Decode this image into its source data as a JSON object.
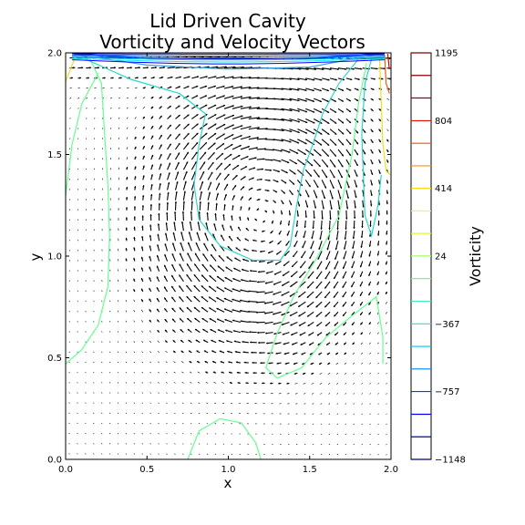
{
  "chart_data": {
    "type": "contour",
    "title": "Lid Driven Cavity\nVorticity and Velocity Vectors",
    "xlabel": "x",
    "ylabel": "y",
    "xlim": [
      0.0,
      2.0
    ],
    "ylim": [
      0.0,
      2.0
    ],
    "x_ticks": [
      "0.0",
      "0.5",
      "1.0",
      "1.5",
      "2.0"
    ],
    "y_ticks": [
      "0.0",
      "0.5",
      "1.0",
      "1.5",
      "2.0"
    ],
    "grid": false,
    "quiver": {
      "description": "velocity vectors on a regular grid; clockwise recirculation vortex centred near (1.2, 1.2) driven by the lid moving in +x at y = 2.0",
      "vortex_center": [
        1.2,
        1.2
      ],
      "color": "#000000"
    },
    "contours": [
      {
        "level": 24,
        "color": "#66ff90",
        "paths": [
          [
            [
              0.0,
              1.3
            ],
            [
              0.04,
              1.55
            ],
            [
              0.1,
              1.75
            ],
            [
              0.2,
              1.9
            ]
          ],
          [
            [
              0.0,
              0.47
            ],
            [
              0.1,
              0.54
            ],
            [
              0.2,
              0.66
            ],
            [
              0.26,
              0.85
            ],
            [
              0.27,
              1.1
            ],
            [
              0.26,
              1.35
            ],
            [
              0.24,
              1.6
            ],
            [
              0.22,
              1.85
            ],
            [
              0.15,
              1.97
            ]
          ],
          [
            [
              0.75,
              0.0
            ],
            [
              0.82,
              0.14
            ],
            [
              0.95,
              0.2
            ],
            [
              1.08,
              0.18
            ],
            [
              1.17,
              0.08
            ],
            [
              1.2,
              0.0
            ]
          ],
          [
            [
              1.95,
              0.47
            ],
            [
              1.95,
              0.6
            ],
            [
              1.91,
              0.8
            ],
            [
              1.75,
              0.7
            ],
            [
              1.6,
              0.6
            ],
            [
              1.45,
              0.45
            ],
            [
              1.3,
              0.4
            ],
            [
              1.23,
              0.45
            ],
            [
              1.3,
              0.62
            ],
            [
              1.4,
              0.8
            ],
            [
              1.55,
              1.0
            ],
            [
              1.68,
              1.2
            ],
            [
              1.76,
              1.5
            ],
            [
              1.8,
              1.75
            ],
            [
              1.85,
              1.95
            ]
          ]
        ]
      },
      {
        "level": -180,
        "color": "#2ad8c8",
        "paths": [
          [
            [
              0.12,
              1.97
            ],
            [
              0.4,
              1.87
            ],
            [
              0.7,
              1.8
            ],
            [
              0.86,
              1.7
            ],
            [
              0.82,
              1.55
            ],
            [
              0.79,
              1.35
            ],
            [
              0.82,
              1.18
            ],
            [
              0.95,
              1.05
            ],
            [
              1.15,
              0.98
            ],
            [
              1.32,
              0.98
            ],
            [
              1.38,
              1.05
            ],
            [
              1.42,
              1.25
            ],
            [
              1.46,
              1.42
            ],
            [
              1.52,
              1.55
            ],
            [
              1.58,
              1.7
            ],
            [
              1.68,
              1.85
            ],
            [
              1.8,
              1.97
            ]
          ],
          [
            [
              1.94,
              1.4
            ],
            [
              1.92,
              1.25
            ],
            [
              1.88,
              1.1
            ],
            [
              1.84,
              1.2
            ],
            [
              1.82,
              1.6
            ],
            [
              1.84,
              1.85
            ],
            [
              1.88,
              1.97
            ]
          ]
        ]
      },
      {
        "level": -367,
        "color": "#3fa0e0",
        "paths": [
          [
            [
              0.08,
              1.99
            ],
            [
              0.5,
              1.94
            ],
            [
              1.0,
              1.92
            ],
            [
              1.5,
              1.93
            ],
            [
              1.9,
              1.99
            ]
          ]
        ]
      },
      {
        "level": -757,
        "color": "#0000c8",
        "paths": [
          [
            [
              0.05,
              1.995
            ],
            [
              0.5,
              1.975
            ],
            [
              1.0,
              1.97
            ],
            [
              1.5,
              1.975
            ],
            [
              1.96,
              1.995
            ]
          ]
        ]
      },
      {
        "level": 414,
        "color": "#f0e020",
        "paths": [
          [
            [
              1.93,
              1.97
            ],
            [
              1.94,
              1.75
            ],
            [
              1.95,
              1.55
            ],
            [
              1.97,
              1.42
            ],
            [
              1.995,
              1.4
            ]
          ],
          [
            [
              0.0,
              1.86
            ],
            [
              0.03,
              1.92
            ],
            [
              0.06,
              1.98
            ]
          ]
        ]
      },
      {
        "level": 804,
        "color": "#e06020",
        "paths": [
          [
            [
              1.96,
              1.99
            ],
            [
              1.97,
              1.85
            ],
            [
              1.99,
              1.8
            ]
          ]
        ]
      },
      {
        "level": 1195,
        "color": "#c80000",
        "paths": [
          [
            [
              1.98,
              1.995
            ],
            [
              1.99,
              1.92
            ]
          ]
        ]
      }
    ],
    "colorbar": {
      "label": "Vorticity",
      "min": -1148,
      "max": 1195,
      "tick_labels": [
        "1195",
        "804",
        "414",
        "24",
        "−367",
        "−757",
        "−1148"
      ],
      "tick_values": [
        1195,
        804,
        414,
        24,
        -367,
        -757,
        -1148
      ],
      "levels": [
        -1148,
        -1018,
        -888,
        -757,
        -627,
        -497,
        -367,
        -237,
        -106,
        24,
        154,
        284,
        414,
        544,
        674,
        804,
        935,
        1065,
        1195
      ],
      "cmap": [
        "#000080",
        "#0000c8",
        "#0000ff",
        "#0040ff",
        "#0080ff",
        "#00c0ff",
        "#20e0e0",
        "#40f0b0",
        "#70ff80",
        "#a0ff60",
        "#d0ff30",
        "#ffff00",
        "#ffd000",
        "#ff9000",
        "#ff5000",
        "#e01000",
        "#a00000",
        "#800000"
      ]
    }
  }
}
